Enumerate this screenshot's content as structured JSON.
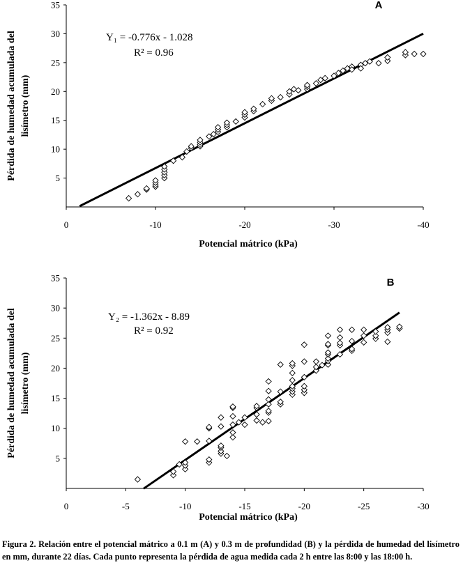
{
  "chart_data": [
    {
      "type": "scatter",
      "panel_label": "A",
      "xlabel": "Potencial mátrico (kPa)",
      "ylabel_lines": [
        "Pérdida de humedad acumulada del",
        "lisímetro (mm)"
      ],
      "xlim": [
        0,
        -40
      ],
      "ylim": [
        0,
        35
      ],
      "xticks": [
        0,
        -10,
        -20,
        -30,
        -40
      ],
      "xtick_labels": [
        "0",
        "-10",
        "-20",
        "-30",
        "-40"
      ],
      "yticks": [
        5,
        10,
        15,
        20,
        25,
        30,
        35
      ],
      "ytick_labels": [
        "5",
        "10",
        "15",
        "20",
        "25",
        "30",
        "35"
      ],
      "equation": "Y₁ = -0.776x - 1.028",
      "r2": "R² = 0.96",
      "fit": {
        "slope": -0.776,
        "intercept": -1.028,
        "x_from": -1.5,
        "x_to": -40
      },
      "points": [
        [
          -7,
          1.5
        ],
        [
          -8,
          2.2
        ],
        [
          -9,
          3.0
        ],
        [
          -9,
          3.2
        ],
        [
          -10,
          3.5
        ],
        [
          -10,
          3.8
        ],
        [
          -10,
          4.2
        ],
        [
          -10,
          4.6
        ],
        [
          -11,
          5.0
        ],
        [
          -11,
          5.5
        ],
        [
          -11,
          6.0
        ],
        [
          -11,
          6.5
        ],
        [
          -11,
          7.0
        ],
        [
          -12,
          8.0
        ],
        [
          -13,
          8.6
        ],
        [
          -13.5,
          9.6
        ],
        [
          -14,
          10.2
        ],
        [
          -14,
          10.5
        ],
        [
          -15,
          10.5
        ],
        [
          -15,
          10.8
        ],
        [
          -15,
          11.2
        ],
        [
          -15,
          11.6
        ],
        [
          -16,
          12.2
        ],
        [
          -16.5,
          12.6
        ],
        [
          -17,
          13.0
        ],
        [
          -17,
          13.4
        ],
        [
          -17,
          13.8
        ],
        [
          -18,
          13.8
        ],
        [
          -18,
          14.2
        ],
        [
          -18,
          14.6
        ],
        [
          -19,
          14.8
        ],
        [
          -20,
          15.5
        ],
        [
          -20,
          16.0
        ],
        [
          -20,
          16.4
        ],
        [
          -21,
          16.6
        ],
        [
          -21,
          17.0
        ],
        [
          -22,
          17.8
        ],
        [
          -23,
          18.4
        ],
        [
          -23,
          18.8
        ],
        [
          -24,
          19.0
        ],
        [
          -25,
          19.5
        ],
        [
          -25,
          20.0
        ],
        [
          -25.5,
          20.4
        ],
        [
          -26,
          20.2
        ],
        [
          -27,
          20.4
        ],
        [
          -27,
          20.8
        ],
        [
          -27,
          21.1
        ],
        [
          -28,
          21.4
        ],
        [
          -28.5,
          22.0
        ],
        [
          -29,
          22.3
        ],
        [
          -30,
          22.7
        ],
        [
          -30.5,
          23.2
        ],
        [
          -31,
          23.6
        ],
        [
          -31.5,
          24.0
        ],
        [
          -32,
          24.3
        ],
        [
          -32,
          23.8
        ],
        [
          -33,
          24.6
        ],
        [
          -33,
          24.0
        ],
        [
          -33.5,
          24.9
        ],
        [
          -34,
          25.2
        ],
        [
          -35,
          24.9
        ],
        [
          -36,
          25.3
        ],
        [
          -36,
          25.9
        ],
        [
          -38,
          26.3
        ],
        [
          -38,
          26.8
        ],
        [
          -39,
          26.5
        ],
        [
          -40,
          26.5
        ]
      ]
    },
    {
      "type": "scatter",
      "panel_label": "B",
      "xlabel": "Potencial mátrico (kPa)",
      "ylabel_lines": [
        "Pérdida de humedad acumulada del",
        "lisímetro (mm)"
      ],
      "xlim": [
        0,
        -30
      ],
      "ylim": [
        0,
        35
      ],
      "xticks": [
        0,
        -5,
        -10,
        -15,
        -20,
        -25,
        -30
      ],
      "xtick_labels": [
        "0",
        "-5",
        "-10",
        "-15",
        "-20",
        "-25",
        "-30"
      ],
      "yticks": [
        5,
        10,
        15,
        20,
        25,
        30,
        35
      ],
      "ytick_labels": [
        "5",
        "10",
        "15",
        "20",
        "25",
        "30",
        "35"
      ],
      "equation": "Y₂ = -1.362x - 8.89",
      "r2": "R² = 0.92",
      "fit": {
        "slope": -1.362,
        "intercept": -8.89,
        "x_from": -6.5,
        "x_to": -28
      },
      "points": [
        [
          -6,
          1.5
        ],
        [
          -9,
          2.2
        ],
        [
          -9,
          2.8
        ],
        [
          -9.5,
          4.0
        ],
        [
          -10,
          3.2
        ],
        [
          -10,
          3.8
        ],
        [
          -10,
          4.3
        ],
        [
          -10,
          7.8
        ],
        [
          -11,
          7.8
        ],
        [
          -12,
          4.3
        ],
        [
          -12,
          4.8
        ],
        [
          -12,
          7.9
        ],
        [
          -12,
          10.0
        ],
        [
          -12,
          10.2
        ],
        [
          -13,
          5.8
        ],
        [
          -13,
          6.2
        ],
        [
          -13,
          6.8
        ],
        [
          -13,
          7.1
        ],
        [
          -13,
          10.3
        ],
        [
          -13,
          11.8
        ],
        [
          -13.5,
          5.4
        ],
        [
          -14,
          8.5
        ],
        [
          -14,
          9.3
        ],
        [
          -14,
          10.6
        ],
        [
          -14,
          12.0
        ],
        [
          -14,
          13.4
        ],
        [
          -14,
          13.6
        ],
        [
          -14.5,
          11.0
        ],
        [
          -15,
          10.6
        ],
        [
          -15,
          11.8
        ],
        [
          -16,
          11.3
        ],
        [
          -16,
          12.3
        ],
        [
          -16,
          13.4
        ],
        [
          -16,
          13.7
        ],
        [
          -16.5,
          11.0
        ],
        [
          -17,
          11.2
        ],
        [
          -17,
          12.6
        ],
        [
          -17,
          12.9
        ],
        [
          -17,
          14.0
        ],
        [
          -17,
          14.8
        ],
        [
          -17,
          16.2
        ],
        [
          -17,
          17.8
        ],
        [
          -18,
          14.0
        ],
        [
          -18,
          14.4
        ],
        [
          -18,
          16.1
        ],
        [
          -18,
          20.6
        ],
        [
          -19,
          15.6
        ],
        [
          -19,
          16.1
        ],
        [
          -19,
          16.6
        ],
        [
          -19,
          17.0
        ],
        [
          -19,
          18.0
        ],
        [
          -19,
          19.2
        ],
        [
          -19,
          20.4
        ],
        [
          -19,
          20.8
        ],
        [
          -20,
          15.9
        ],
        [
          -20,
          16.4
        ],
        [
          -20,
          17.0
        ],
        [
          -20,
          18.5
        ],
        [
          -20,
          21.1
        ],
        [
          -20,
          23.9
        ],
        [
          -21,
          19.6
        ],
        [
          -21,
          20.2
        ],
        [
          -21,
          21.1
        ],
        [
          -21.5,
          20.5
        ],
        [
          -22,
          20.6
        ],
        [
          -22,
          21.2
        ],
        [
          -22,
          21.6
        ],
        [
          -22,
          22.3
        ],
        [
          -22,
          22.6
        ],
        [
          -22,
          23.8
        ],
        [
          -22,
          24.0
        ],
        [
          -22,
          25.4
        ],
        [
          -23,
          22.3
        ],
        [
          -23,
          23.8
        ],
        [
          -23,
          24.2
        ],
        [
          -23,
          25.1
        ],
        [
          -23,
          26.4
        ],
        [
          -24,
          22.9
        ],
        [
          -24,
          23.2
        ],
        [
          -24,
          24.5
        ],
        [
          -24,
          26.4
        ],
        [
          -25,
          24.3
        ],
        [
          -25,
          25.4
        ],
        [
          -25,
          26.4
        ],
        [
          -26,
          24.9
        ],
        [
          -26,
          25.4
        ],
        [
          -26,
          26.1
        ],
        [
          -27,
          24.4
        ],
        [
          -27,
          25.9
        ],
        [
          -27,
          26.4
        ],
        [
          -27,
          26.8
        ],
        [
          -28,
          26.6
        ],
        [
          -28,
          26.9
        ]
      ]
    }
  ],
  "caption": "Figura 2. Relación entre el potencial mátrico a 0.1 m  (A) y 0.3 m de profundidad (B) y la pérdida de humedad del lisímetro en mm, durante 22 días. Cada punto representa la pérdida de agua medida cada 2 h entre las 8:00 y las 18:00 h."
}
